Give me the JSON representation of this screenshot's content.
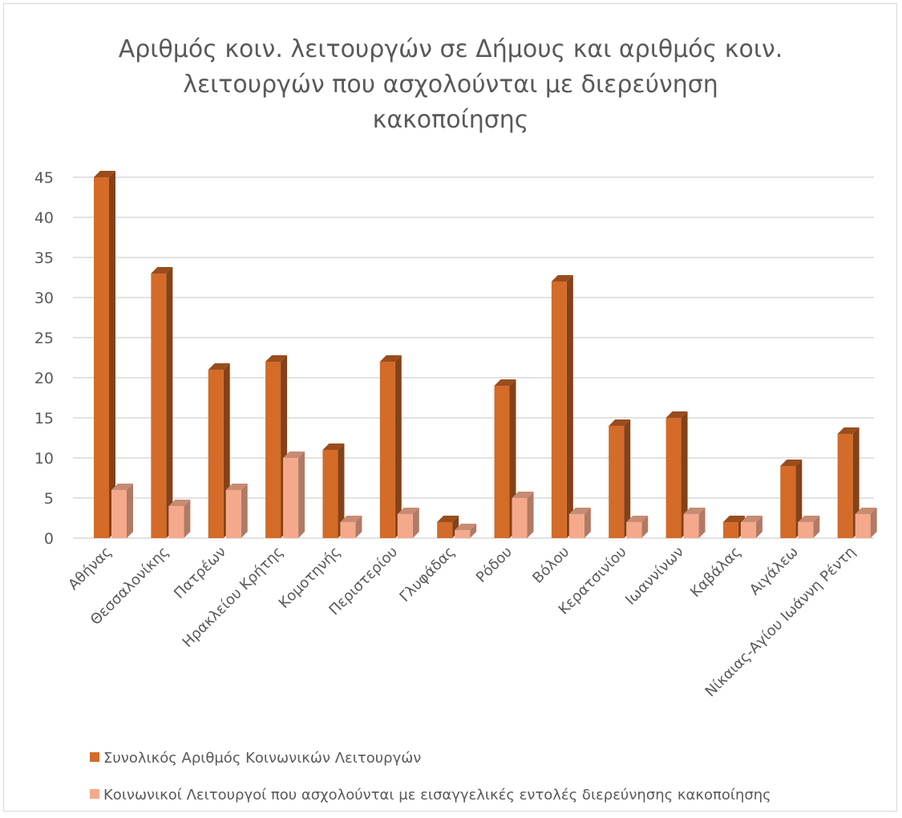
{
  "chart_data": {
    "type": "bar",
    "title": "Αριθμός κοιν. λειτουργών σε Δήμους και αριθμός κοιν. λειτουργών που ασχολούνται με διερεύνηση κακοποίησης",
    "title_lines": [
      "Αριθμός κοιν. λειτουργών σε Δήμους και αριθμός κοιν.",
      "λειτουργών που ασχολούνται με διερεύνηση",
      "κακοποίησης"
    ],
    "categories": [
      "Αθήνας",
      "Θεσσαλονίκης",
      "Πατρέων",
      "Ηρακλείου Κρήτης",
      "Κομοτηνής",
      "Περιστερίου",
      "Γλυφάδας",
      "Ρόδου",
      "Βόλου",
      "Κερατσινίου",
      "Ιωαννίνων",
      "Καβάλας",
      "Αιγάλεω",
      "Νίκαιας-Αγίου Ιωάννη Ρέντη"
    ],
    "series": [
      {
        "name": "Συνολικός Αριθμός Κοινωνικών Λειτουργών",
        "color": "#d46b28",
        "values": [
          45,
          33,
          21,
          22,
          11,
          22,
          2,
          19,
          32,
          14,
          15,
          2,
          9,
          13
        ]
      },
      {
        "name": "Κοινωνικοί Λειτουργοί που ασχολούνται με εισαγγελικές εντολές διερεύνησης κακοποίησης",
        "color": "#f4a98c",
        "values": [
          6,
          4,
          6,
          10,
          2,
          3,
          1,
          5,
          3,
          2,
          3,
          2,
          2,
          3
        ]
      }
    ],
    "ylim": [
      0,
      45
    ],
    "yticks": [
      "0",
      "5",
      "10",
      "15",
      "20",
      "25",
      "30",
      "35",
      "40",
      "45"
    ],
    "xlabel": "",
    "ylabel": "",
    "grid": true,
    "legend_position": "bottom-left",
    "style": "3d-clustered-column"
  }
}
